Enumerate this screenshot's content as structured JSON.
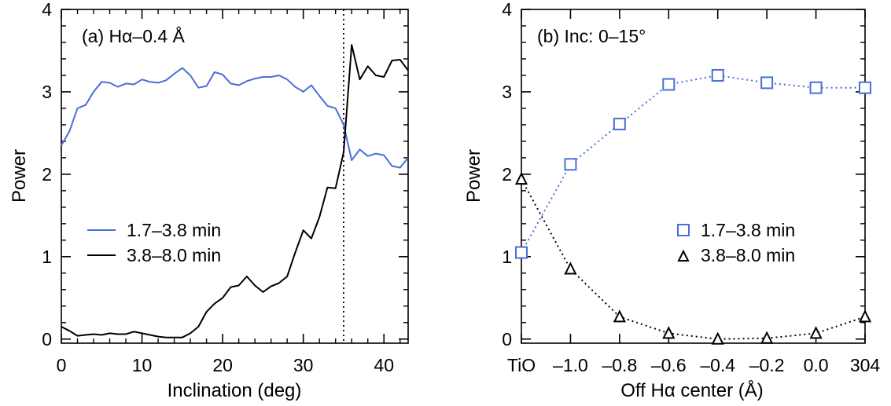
{
  "colors": {
    "series1": "#4a6fd6",
    "series2": "#000000",
    "axes": "#000000",
    "background": "#ffffff"
  },
  "chart_data": [
    {
      "type": "line",
      "title": "(a) Hα–0.4 Å",
      "xlabel": "Inclination (deg)",
      "ylabel": "Power",
      "xlim": [
        0,
        43
      ],
      "ylim": [
        -0.05,
        4
      ],
      "xticks": [
        0,
        10,
        20,
        30,
        40
      ],
      "yticks": [
        0,
        1,
        2,
        3,
        4
      ],
      "grid": false,
      "legend": {
        "placement": "middle-left",
        "style": "line"
      },
      "reference_line": {
        "x": 35,
        "style": "dotted"
      },
      "series": [
        {
          "name": "1.7–3.8 min",
          "color": "#4a6fd6",
          "style": "solid",
          "x": [
            0,
            1,
            2,
            3,
            4,
            5,
            6,
            7,
            8,
            9,
            10,
            11,
            12,
            13,
            14,
            15,
            16,
            17,
            18,
            19,
            20,
            21,
            22,
            23,
            24,
            25,
            26,
            27,
            28,
            29,
            30,
            31,
            32,
            33,
            34,
            35,
            36,
            37,
            38,
            39,
            40,
            41,
            42,
            43
          ],
          "y": [
            2.35,
            2.52,
            2.8,
            2.84,
            3.0,
            3.12,
            3.11,
            3.06,
            3.1,
            3.09,
            3.15,
            3.12,
            3.11,
            3.14,
            3.22,
            3.29,
            3.2,
            3.05,
            3.07,
            3.24,
            3.21,
            3.1,
            3.08,
            3.13,
            3.16,
            3.18,
            3.18,
            3.2,
            3.15,
            3.06,
            3.0,
            3.08,
            2.95,
            2.83,
            2.8,
            2.6,
            2.17,
            2.3,
            2.22,
            2.25,
            2.23,
            2.1,
            2.08,
            2.2
          ]
        },
        {
          "name": "3.8–8.0 min",
          "color": "#000000",
          "style": "solid",
          "x": [
            0,
            1,
            2,
            3,
            4,
            5,
            6,
            7,
            8,
            9,
            10,
            11,
            12,
            13,
            14,
            15,
            16,
            17,
            18,
            19,
            20,
            21,
            22,
            23,
            24,
            25,
            26,
            27,
            28,
            29,
            30,
            31,
            32,
            33,
            34,
            35,
            36,
            37,
            38,
            39,
            40,
            41,
            42,
            43
          ],
          "y": [
            0.15,
            0.1,
            0.04,
            0.05,
            0.06,
            0.05,
            0.07,
            0.06,
            0.06,
            0.09,
            0.07,
            0.05,
            0.03,
            0.02,
            0.02,
            0.02,
            0.07,
            0.15,
            0.33,
            0.43,
            0.5,
            0.63,
            0.65,
            0.76,
            0.65,
            0.57,
            0.64,
            0.68,
            0.76,
            1.05,
            1.32,
            1.22,
            1.48,
            1.84,
            1.83,
            2.27,
            3.57,
            3.15,
            3.31,
            3.2,
            3.18,
            3.38,
            3.39,
            3.26
          ]
        }
      ]
    },
    {
      "type": "scatter",
      "title": "(b) Inc: 0–15°",
      "xlabel": "Off Hα center (Å)",
      "ylabel": "Power",
      "categories": [
        "TiO",
        "–1.0",
        "–0.8",
        "–0.6",
        "–0.4",
        "–0.2",
        "0.0",
        "304"
      ],
      "ylim": [
        -0.05,
        4
      ],
      "yticks": [
        0,
        1,
        2,
        3,
        4
      ],
      "grid": false,
      "legend": {
        "placement": "middle-right",
        "style": "marker"
      },
      "series": [
        {
          "name": "1.7–3.8 min",
          "color": "#4a6fd6",
          "marker": "square",
          "line": "dotted",
          "values": [
            1.05,
            2.12,
            2.61,
            3.09,
            3.2,
            3.11,
            3.05,
            3.05
          ]
        },
        {
          "name": "3.8–8.0 min",
          "color": "#000000",
          "marker": "triangle",
          "line": "dotted",
          "values": [
            1.94,
            0.85,
            0.27,
            0.07,
            0.0,
            0.01,
            0.07,
            0.27
          ]
        }
      ]
    }
  ]
}
